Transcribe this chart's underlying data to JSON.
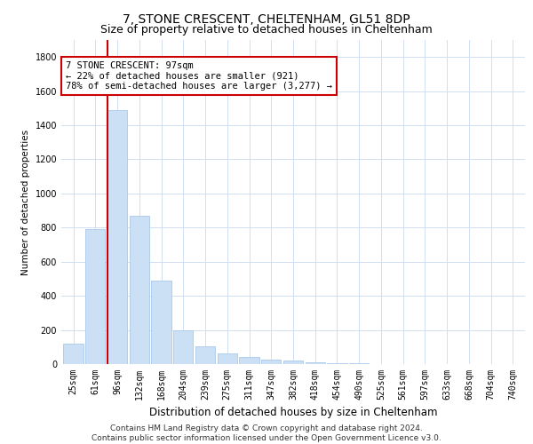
{
  "title": "7, STONE CRESCENT, CHELTENHAM, GL51 8DP",
  "subtitle": "Size of property relative to detached houses in Cheltenham",
  "xlabel": "Distribution of detached houses by size in Cheltenham",
  "ylabel": "Number of detached properties",
  "categories": [
    "25sqm",
    "61sqm",
    "96sqm",
    "132sqm",
    "168sqm",
    "204sqm",
    "239sqm",
    "275sqm",
    "311sqm",
    "347sqm",
    "382sqm",
    "418sqm",
    "454sqm",
    "490sqm",
    "525sqm",
    "561sqm",
    "597sqm",
    "633sqm",
    "668sqm",
    "704sqm",
    "740sqm"
  ],
  "values": [
    120,
    790,
    1490,
    870,
    490,
    200,
    105,
    65,
    42,
    28,
    20,
    10,
    5,
    3,
    2,
    2,
    2,
    1,
    1,
    1,
    1
  ],
  "bar_color": "#cce0f5",
  "bar_edge_color": "#aac8e8",
  "highlight_bar_index": 2,
  "highlight_line_color": "#cc0000",
  "annotation_text": "7 STONE CRESCENT: 97sqm\n← 22% of detached houses are smaller (921)\n78% of semi-detached houses are larger (3,277) →",
  "annotation_box_color": "#ffffff",
  "annotation_box_edge_color": "#cc0000",
  "ylim": [
    0,
    1900
  ],
  "yticks": [
    0,
    200,
    400,
    600,
    800,
    1000,
    1200,
    1400,
    1600,
    1800
  ],
  "footer_text": "Contains HM Land Registry data © Crown copyright and database right 2024.\nContains public sector information licensed under the Open Government Licence v3.0.",
  "title_fontsize": 10,
  "subtitle_fontsize": 9,
  "xlabel_fontsize": 8.5,
  "ylabel_fontsize": 7.5,
  "tick_fontsize": 7,
  "annotation_fontsize": 7.5,
  "footer_fontsize": 6.5,
  "background_color": "#ffffff",
  "grid_color": "#d0e0f0"
}
